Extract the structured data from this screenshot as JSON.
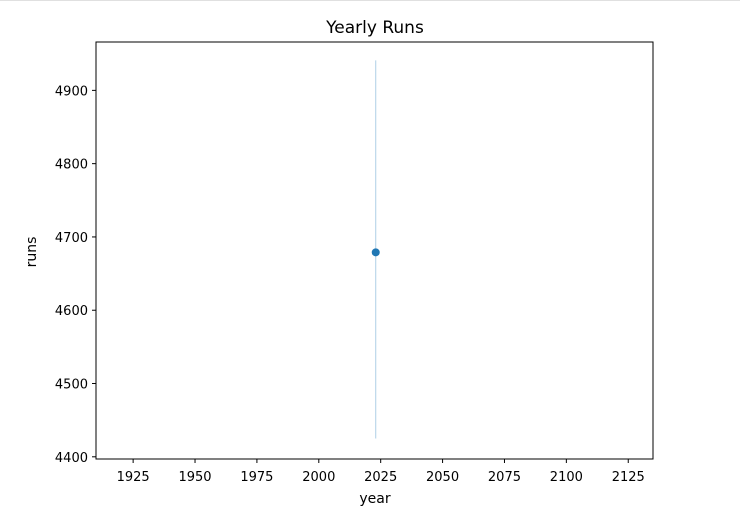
{
  "chart_data": {
    "type": "scatter",
    "title": "Yearly Runs",
    "xlabel": "year",
    "ylabel": "runs",
    "xlim": [
      1910,
      2135
    ],
    "ylim": [
      4397,
      4966
    ],
    "x_ticks": [
      1925,
      1950,
      1975,
      2000,
      2025,
      2050,
      2075,
      2100,
      2125
    ],
    "y_ticks": [
      4400,
      4500,
      4600,
      4700,
      4800,
      4900
    ],
    "grid": false,
    "points": [
      {
        "x": 2023,
        "y": 4679,
        "error_low": 4425,
        "error_high": 4941
      }
    ],
    "colors": {
      "point": "#1f77b4",
      "errorbar": "#aecfe6",
      "axes": "#000000"
    }
  }
}
